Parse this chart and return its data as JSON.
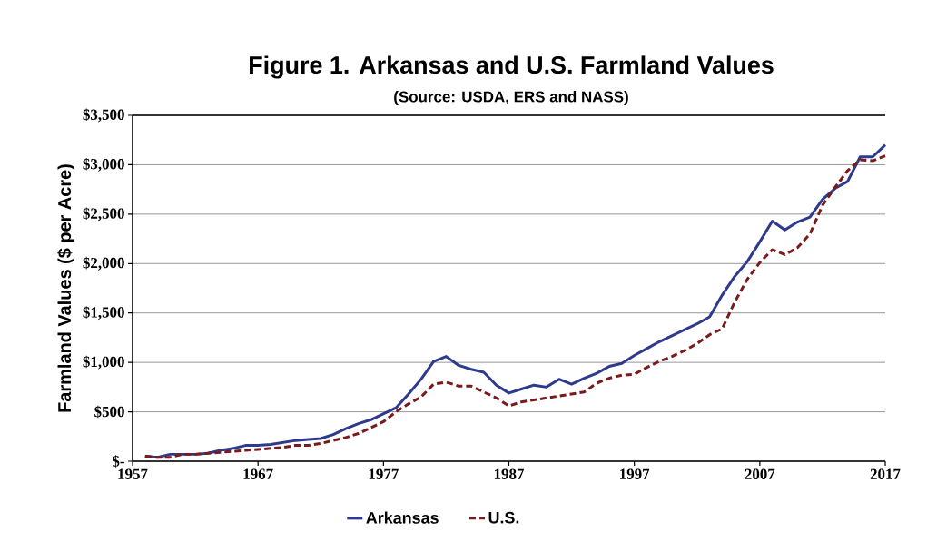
{
  "chart_data": {
    "type": "line",
    "title": "Figure 1. Arkansas and U.S. Farmland Values",
    "subtitle": "(Source: USDA, ERS and NASS)",
    "ylabel": "Farmland Values ($ per Acre)",
    "x": [
      1958,
      1959,
      1960,
      1961,
      1962,
      1963,
      1964,
      1965,
      1966,
      1967,
      1968,
      1969,
      1970,
      1971,
      1972,
      1973,
      1974,
      1975,
      1976,
      1977,
      1978,
      1979,
      1980,
      1981,
      1982,
      1983,
      1984,
      1985,
      1986,
      1987,
      1988,
      1989,
      1990,
      1991,
      1992,
      1993,
      1994,
      1995,
      1996,
      1997,
      1998,
      1999,
      2000,
      2001,
      2002,
      2003,
      2004,
      2005,
      2006,
      2007,
      2008,
      2009,
      2010,
      2011,
      2012,
      2013,
      2014,
      2015,
      2016,
      2017
    ],
    "series": [
      {
        "name": "Arkansas",
        "color": "#2e3a8c",
        "line_style": "solid",
        "values": [
          50,
          40,
          70,
          70,
          70,
          80,
          110,
          130,
          160,
          160,
          170,
          190,
          210,
          220,
          230,
          270,
          330,
          380,
          420,
          480,
          540,
          680,
          830,
          1010,
          1060,
          970,
          930,
          900,
          770,
          690,
          730,
          770,
          750,
          830,
          780,
          840,
          890,
          960,
          990,
          1070,
          1140,
          1210,
          1270,
          1330,
          1390,
          1460,
          1680,
          1870,
          2020,
          2220,
          2430,
          2340,
          2420,
          2470,
          2650,
          2760,
          2830,
          3080,
          3080,
          3200
        ]
      },
      {
        "name": "U.S.",
        "color": "#7b1a1a",
        "line_style": "dashed",
        "values": [
          50,
          40,
          40,
          70,
          70,
          80,
          90,
          100,
          110,
          120,
          130,
          140,
          160,
          160,
          180,
          210,
          240,
          280,
          340,
          400,
          500,
          580,
          650,
          780,
          800,
          760,
          760,
          700,
          640,
          560,
          600,
          620,
          640,
          660,
          680,
          700,
          790,
          840,
          870,
          880,
          950,
          1010,
          1060,
          1120,
          1190,
          1280,
          1340,
          1610,
          1840,
          2010,
          2140,
          2090,
          2160,
          2300,
          2590,
          2770,
          2940,
          3050,
          3040,
          3090
        ]
      }
    ],
    "xlim": [
      1957,
      2017
    ],
    "xticks": [
      1957,
      1967,
      1977,
      1987,
      1997,
      2007,
      2017
    ],
    "ylim": [
      0,
      3500
    ],
    "yticks": [
      {
        "value": 0,
        "label": "$-"
      },
      {
        "value": 500,
        "label": "$500"
      },
      {
        "value": 1000,
        "label": "$1,000"
      },
      {
        "value": 1500,
        "label": "$1,500"
      },
      {
        "value": 2000,
        "label": "$2,000"
      },
      {
        "value": 2500,
        "label": "$2,500"
      },
      {
        "value": 3000,
        "label": "$3,000"
      },
      {
        "value": 3500,
        "label": "$3,500"
      }
    ],
    "grid": "y",
    "legend": "bottom",
    "marker": "none"
  }
}
